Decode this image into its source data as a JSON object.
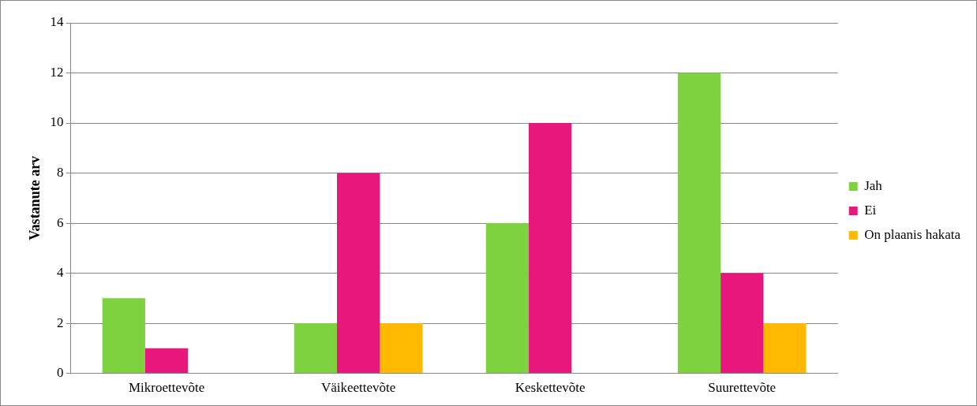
{
  "chart_data": {
    "type": "bar",
    "ylabel": "Vastanute arv",
    "categories": [
      "Mikroettevõte",
      "Väikeettevõte",
      "Keskettevõte",
      "Suurettevõte"
    ],
    "series": [
      {
        "name": "Jah",
        "color": "#7ed13f",
        "values": [
          3,
          2,
          6,
          12
        ]
      },
      {
        "name": "Ei",
        "color": "#e8177b",
        "values": [
          1,
          8,
          10,
          4
        ]
      },
      {
        "name": "On plaanis hakata",
        "color": "#ffb900",
        "values": [
          0,
          2,
          0,
          2
        ]
      }
    ],
    "ylim": [
      0,
      14
    ],
    "yticks": [
      0,
      2,
      4,
      6,
      8,
      10,
      12,
      14
    ],
    "grid": "y",
    "legend": "right"
  }
}
